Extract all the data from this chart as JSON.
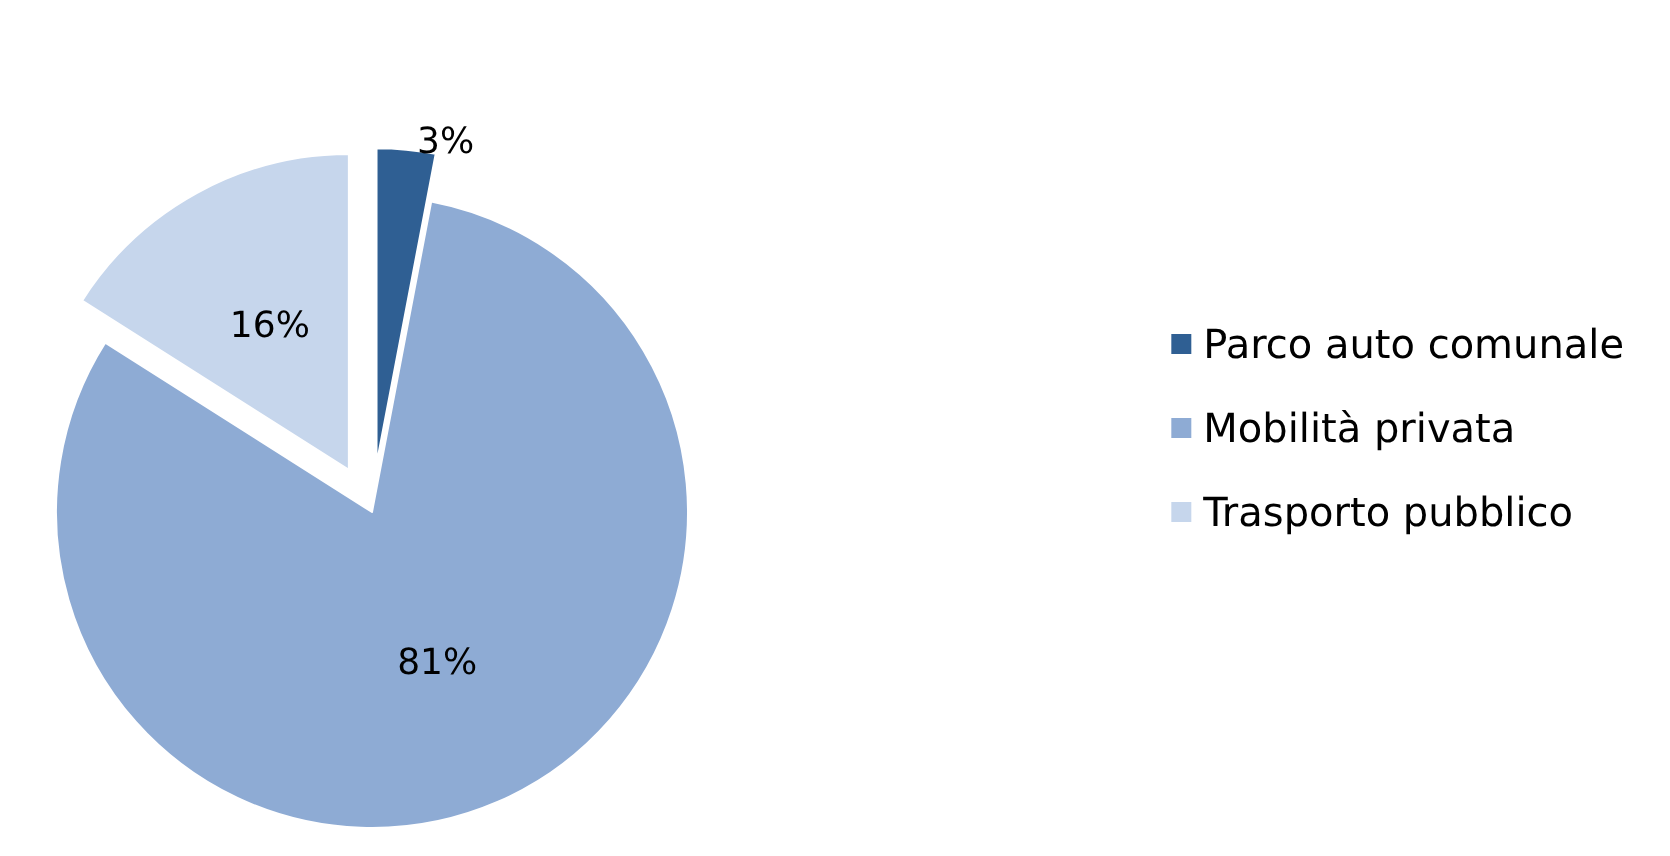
{
  "chart_data": {
    "type": "pie",
    "categories": [
      "Parco auto comunale",
      "Mobilità privata",
      "Trasporto pubblico"
    ],
    "values": [
      3,
      81,
      16
    ],
    "colors": [
      "#2f5f93",
      "#8eabd4",
      "#c6d6ec"
    ],
    "value_labels": [
      "3%",
      "81%",
      "16%"
    ],
    "legend": "right"
  }
}
